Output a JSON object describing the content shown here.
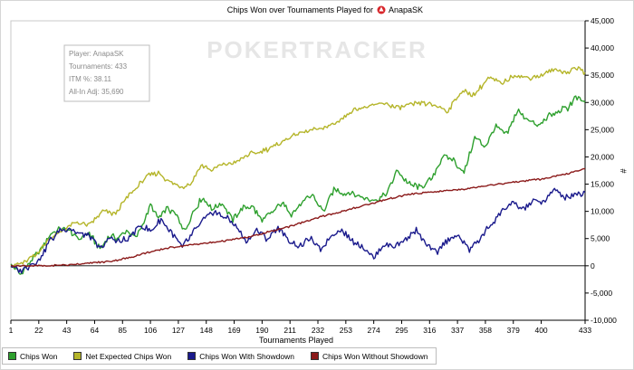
{
  "chart_data": {
    "type": "line",
    "title": "Chips Won over Tournaments Played for",
    "player_name": "AnapaSK",
    "xlabel": "Tournaments Played",
    "ylabel": "#",
    "xlim": [
      1,
      433
    ],
    "ylim": [
      -10000,
      45000
    ],
    "x_ticks": [
      1,
      22,
      43,
      64,
      85,
      106,
      127,
      148,
      169,
      190,
      211,
      232,
      253,
      274,
      295,
      316,
      337,
      358,
      379,
      400,
      433
    ],
    "y_ticks": [
      -10000,
      -5000,
      0,
      5000,
      10000,
      15000,
      20000,
      25000,
      30000,
      35000,
      40000,
      45000
    ],
    "y_tick_labels": [
      "-10,000",
      "-5,000",
      "0",
      "5,000",
      "10,000",
      "15,000",
      "20,000",
      "25,000",
      "30,000",
      "35,000",
      "40,000",
      "45,000"
    ],
    "grid": false,
    "legend_position": "bottom-left",
    "stats": [
      "Player: AnapaSK",
      "Tournaments: 433",
      "ITM %: 38.11",
      "All-In Adj: 35,690"
    ],
    "watermark": "POKERTRACKER",
    "series": [
      {
        "name": "Chips Won",
        "color": "#2ea02e",
        "x": [
          1,
          8,
          15,
          22,
          30,
          38,
          45,
          52,
          60,
          68,
          75,
          82,
          88,
          95,
          100,
          106,
          112,
          118,
          125,
          132,
          138,
          145,
          152,
          160,
          168,
          175,
          182,
          190,
          198,
          205,
          212,
          220,
          228,
          236,
          244,
          252,
          260,
          268,
          276,
          284,
          292,
          300,
          310,
          318,
          326,
          334,
          342,
          350,
          358,
          366,
          374,
          382,
          390,
          398,
          406,
          414,
          420,
          426,
          433
        ],
        "values": [
          0,
          -1500,
          500,
          2500,
          5500,
          7000,
          6500,
          5000,
          6000,
          3000,
          5500,
          5000,
          6500,
          5000,
          7500,
          11000,
          8500,
          10500,
          9500,
          6500,
          10000,
          12500,
          10500,
          11500,
          8500,
          10500,
          11000,
          8500,
          10000,
          11500,
          9500,
          11500,
          13000,
          10000,
          14000,
          13500,
          13000,
          12500,
          12000,
          13500,
          17500,
          15000,
          14500,
          16000,
          20000,
          19500,
          17000,
          23500,
          22000,
          25500,
          24000,
          28500,
          27000,
          25500,
          27500,
          28500,
          29000,
          31000,
          30000
        ]
      },
      {
        "name": "Net Expected Chips Won",
        "color": "#b5b52a",
        "x": [
          1,
          10,
          20,
          30,
          40,
          50,
          60,
          70,
          80,
          88,
          96,
          104,
          112,
          120,
          128,
          136,
          144,
          152,
          160,
          170,
          180,
          190,
          200,
          210,
          220,
          230,
          240,
          250,
          258,
          266,
          274,
          282,
          290,
          300,
          310,
          320,
          330,
          340,
          350,
          360,
          370,
          380,
          390,
          400,
          410,
          420,
          426,
          433
        ],
        "values": [
          0,
          500,
          2000,
          5000,
          6500,
          8000,
          7500,
          10000,
          9500,
          12500,
          14500,
          16500,
          17000,
          15500,
          14500,
          15000,
          18500,
          17500,
          18500,
          19000,
          20500,
          21000,
          22000,
          23500,
          24500,
          25000,
          25500,
          27000,
          28500,
          29000,
          29500,
          30000,
          29000,
          29500,
          30000,
          29500,
          28500,
          32000,
          31500,
          34500,
          33500,
          35000,
          34500,
          35000,
          36000,
          35500,
          36500,
          35500
        ]
      },
      {
        "name": "Chips Won With Showdown",
        "color": "#1a1a8c",
        "x": [
          1,
          8,
          15,
          22,
          30,
          38,
          45,
          52,
          60,
          68,
          75,
          82,
          90,
          98,
          106,
          114,
          122,
          130,
          138,
          146,
          154,
          162,
          170,
          178,
          186,
          194,
          202,
          210,
          218,
          226,
          234,
          242,
          250,
          258,
          266,
          274,
          282,
          290,
          298,
          306,
          314,
          322,
          330,
          338,
          346,
          354,
          362,
          370,
          378,
          386,
          394,
          402,
          410,
          418,
          426,
          433
        ],
        "values": [
          0,
          -1000,
          0,
          1000,
          4500,
          6500,
          7000,
          6000,
          5500,
          3000,
          5000,
          4500,
          5000,
          7500,
          6500,
          8500,
          6000,
          3500,
          6000,
          8500,
          10000,
          9000,
          7500,
          4500,
          6500,
          5000,
          7000,
          4500,
          3500,
          5000,
          3000,
          5500,
          6500,
          4500,
          3500,
          1500,
          4000,
          3500,
          5000,
          6500,
          3500,
          2500,
          5000,
          5500,
          3000,
          5000,
          7500,
          10000,
          11500,
          10500,
          12000,
          11500,
          14000,
          12500,
          13000,
          13500
        ]
      },
      {
        "name": "Chips Won Without Showdown",
        "color": "#8b1a1a",
        "x": [
          1,
          15,
          30,
          45,
          60,
          75,
          90,
          105,
          120,
          135,
          150,
          165,
          180,
          195,
          210,
          225,
          240,
          255,
          270,
          285,
          300,
          315,
          330,
          345,
          360,
          375,
          390,
          405,
          420,
          433
        ],
        "values": [
          0,
          0,
          0,
          200,
          500,
          800,
          1500,
          2500,
          3300,
          3800,
          4200,
          4700,
          5300,
          6200,
          7200,
          8300,
          9400,
          10300,
          11300,
          12300,
          13100,
          13500,
          13800,
          14200,
          14800,
          15200,
          15700,
          16100,
          16900,
          17800
        ]
      }
    ]
  }
}
